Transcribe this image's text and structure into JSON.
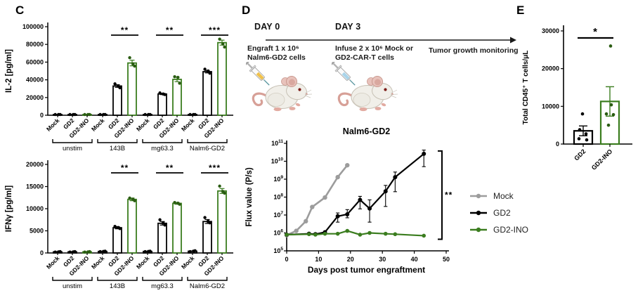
{
  "figure": {
    "panel_c_label": "C",
    "panel_d_label": "D",
    "panel_e_label": "E"
  },
  "colors": {
    "black": "#000000",
    "green": "#3b7d1f",
    "green_dark": "#2a5c12",
    "gray": "#9c9c9c"
  },
  "diagram": {
    "day0_label": "DAY 0",
    "day3_label": "DAY 3",
    "step1": {
      "line1": "Engraft 1 x 10⁶",
      "line2": "Nalm6-GD2 cells"
    },
    "step2": {
      "line1": "Infuse 2 x 10⁶ Mock or",
      "line2": "GD2-CAR-T cells"
    },
    "step3": {
      "line1": "Tumor growth monitoring"
    },
    "mice": [
      {
        "name": "mouse-day0",
        "syringe_liquid": "#f0c14b"
      },
      {
        "name": "mouse-day3",
        "syringe_liquid": "#a9d4ea"
      }
    ]
  },
  "chart_data": [
    {
      "id": "il2",
      "type": "bar",
      "ylabel": "IL-2 [pg/ml]",
      "ylim": [
        0,
        100000
      ],
      "yticks": [
        0,
        20000,
        40000,
        60000,
        80000,
        100000
      ],
      "bar_labels": [
        "Mock",
        "GD2",
        "GD2-INO"
      ],
      "bar_colors": [
        "black",
        "black",
        "green"
      ],
      "groups": [
        {
          "name": "unstim",
          "values": [
            350,
            350,
            350
          ],
          "errors": [
            0,
            0,
            0
          ],
          "points": [
            [
              250,
              350,
              450
            ],
            [
              250,
              350,
              450
            ],
            [
              250,
              350,
              450
            ]
          ],
          "sig": null
        },
        {
          "name": "143B",
          "values": [
            33000,
            59000
          ],
          "values_full": [
            500,
            33000,
            59000
          ],
          "errors": [
            0,
            1500,
            3200
          ],
          "points": [
            [
              300,
              400,
              500
            ],
            [
              35500,
              33000,
              31000
            ],
            [
              65000,
              58000,
              55500
            ]
          ],
          "sig": "**"
        },
        {
          "name": "mg63.3",
          "values_full": [
            400,
            24000,
            40500
          ],
          "errors": [
            0,
            700,
            2600
          ],
          "points": [
            [
              300,
              400,
              500
            ],
            [
              25200,
              24000,
              23400
            ],
            [
              43500,
              42800,
              36200
            ]
          ],
          "sig": "**"
        },
        {
          "name": "Nalm6-GD2",
          "values_full": [
            500,
            49200,
            82000
          ],
          "errors": [
            0,
            1400,
            2800
          ],
          "points": [
            [
              300,
              400,
              500
            ],
            [
              52000,
              50000,
              47500
            ],
            [
              86000,
              80500,
              77000
            ]
          ],
          "sig": "***"
        }
      ]
    },
    {
      "id": "ifng",
      "type": "bar",
      "ylabel": "IFNγ [pg/ml]",
      "ylim": [
        0,
        20000
      ],
      "yticks": [
        0,
        5000,
        10000,
        15000,
        20000
      ],
      "bar_labels": [
        "Mock",
        "GD2",
        "GD2-INO"
      ],
      "bar_colors": [
        "black",
        "black",
        "green"
      ],
      "groups": [
        {
          "name": "unstim",
          "values_full": [
            250,
            250,
            250
          ],
          "errors": [
            0,
            0,
            0
          ],
          "points": [
            [
              200,
              250,
              300
            ],
            [
              200,
              250,
              300
            ],
            [
              200,
              250,
              300
            ]
          ],
          "sig": null
        },
        {
          "name": "143B",
          "values_full": [
            350,
            5700,
            12100
          ],
          "errors": [
            0,
            250,
            300
          ],
          "points": [
            [
              300,
              350,
              400
            ],
            [
              6000,
              5750,
              5500
            ],
            [
              12400,
              12150,
              11800
            ]
          ],
          "sig": "**"
        },
        {
          "name": "mg63.3",
          "values_full": [
            350,
            6700,
            11200
          ],
          "errors": [
            0,
            400,
            200
          ],
          "points": [
            [
              300,
              350,
              400
            ],
            [
              7500,
              6800,
              6300
            ],
            [
              11400,
              11250,
              11000
            ]
          ],
          "sig": "**"
        },
        {
          "name": "Nalm6-GD2",
          "values_full": [
            400,
            7100,
            14000
          ],
          "errors": [
            0,
            450,
            550
          ],
          "points": [
            [
              300,
              400,
              500
            ],
            [
              8000,
              7150,
              6800
            ],
            [
              15100,
              13900,
              13500
            ]
          ],
          "sig": "***"
        }
      ]
    },
    {
      "id": "flux",
      "type": "line",
      "title": "Nalm6-GD2",
      "ylabel": "Flux value (P/s)",
      "xlabel": "Days post tumor engraftment",
      "yscale": "log",
      "ylim_exp": [
        5,
        11
      ],
      "xlim": [
        0,
        50
      ],
      "xticks": [
        0,
        10,
        20,
        30,
        40,
        50
      ],
      "sig": "**",
      "series": [
        {
          "name": "Mock",
          "color_key": "gray",
          "x": [
            0,
            3,
            6,
            8,
            12,
            16,
            19
          ],
          "y": [
            750000,
            1300000,
            4500000,
            28000000,
            95000000,
            1300000000,
            6000000000
          ]
        },
        {
          "name": "GD2",
          "color_key": "black",
          "x": [
            0,
            7,
            9,
            12,
            16,
            19,
            23,
            26,
            31,
            34,
            43
          ],
          "y": [
            800000,
            900000,
            850000,
            1100000,
            8500000,
            11000000,
            70000000,
            23000000,
            210000000,
            1300000000,
            26000000000
          ],
          "err_lo": [
            null,
            null,
            null,
            null,
            4000000,
            7000000,
            22000000,
            4000000,
            30000000,
            200000000,
            5000000000
          ],
          "err_hi": [
            null,
            null,
            null,
            null,
            13000000,
            20000000,
            110000000,
            70000000,
            450000000,
            2500000000,
            42000000000
          ]
        },
        {
          "name": "GD2-INO",
          "color_key": "green",
          "x": [
            0,
            7,
            9,
            12,
            16,
            19,
            23,
            26,
            31,
            34,
            43
          ],
          "y": [
            800000,
            850000,
            800000,
            900000,
            900000,
            1300000,
            800000,
            1000000,
            900000,
            850000,
            700000
          ]
        }
      ],
      "legend": [
        "Mock",
        "GD2",
        "GD2-INO"
      ]
    },
    {
      "id": "cd45",
      "type": "bar",
      "ylabel": "Total CD45⁺ T cells/μL",
      "ylim": [
        0,
        30000
      ],
      "yticks": [
        0,
        10000,
        20000,
        30000
      ],
      "sig": "*",
      "bars": [
        {
          "label": "GD2",
          "color_key": "black",
          "value": 3500,
          "error": 1300,
          "points": [
            8000,
            3800,
            2700,
            1400,
            1100
          ]
        },
        {
          "label": "GD2-INO",
          "color_key": "green",
          "value": 11300,
          "error": 3900,
          "points": [
            26000,
            10400,
            8000,
            7800,
            5000
          ]
        }
      ]
    }
  ]
}
